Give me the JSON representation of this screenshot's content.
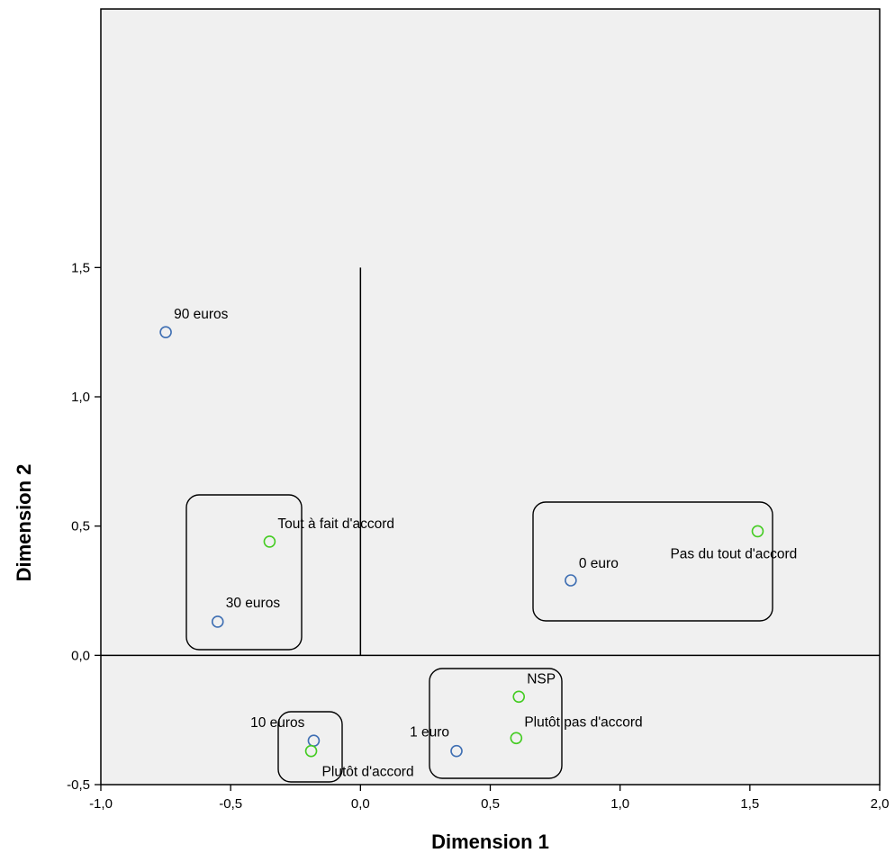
{
  "chart_data": {
    "type": "scatter",
    "xlabel": "Dimension 1",
    "ylabel": "Dimension 2",
    "xlim": [
      -1.0,
      2.0
    ],
    "ylim": [
      -0.5,
      2.5
    ],
    "x_ticks": [
      -1.0,
      -0.5,
      0.0,
      0.5,
      1.0,
      1.5,
      2.0
    ],
    "x_tick_labels": [
      "-1,0",
      "-0,5",
      "0,0",
      "0,5",
      "1,0",
      "1,5",
      "2,0"
    ],
    "y_ticks": [
      -0.5,
      0.0,
      0.5,
      1.0,
      1.5
    ],
    "y_tick_labels": [
      "-0,5",
      "0,0",
      "0,5",
      "1,0",
      "1,5"
    ],
    "grid": false,
    "reference_lines": {
      "x": 0.0,
      "y": 0.0,
      "vertical_y_range": [
        0.0,
        1.5
      ]
    },
    "series": [
      {
        "color": "#3f6fb3",
        "points": [
          {
            "label": "90 euros",
            "x": -0.75,
            "y": 1.25
          },
          {
            "label": "30 euros",
            "x": -0.55,
            "y": 0.13
          },
          {
            "label": "0 euro",
            "x": 0.81,
            "y": 0.29
          },
          {
            "label": "10 euros",
            "x": -0.18,
            "y": -0.33
          },
          {
            "label": "1 euro",
            "x": 0.37,
            "y": -0.37
          }
        ]
      },
      {
        "color": "#44cc22",
        "points": [
          {
            "label": "Tout à fait d'accord",
            "x": -0.35,
            "y": 0.44
          },
          {
            "label": "Pas du tout d'accord",
            "x": 1.53,
            "y": 0.48
          },
          {
            "label": "NSP",
            "x": 0.61,
            "y": -0.16
          },
          {
            "label": "Plutôt pas d'accord",
            "x": 0.6,
            "y": -0.32
          },
          {
            "label": "Plutôt d'accord",
            "x": -0.19,
            "y": -0.37
          }
        ]
      }
    ]
  },
  "colors": {
    "plot_background": "#f0f0f0",
    "frame": "#000000"
  }
}
